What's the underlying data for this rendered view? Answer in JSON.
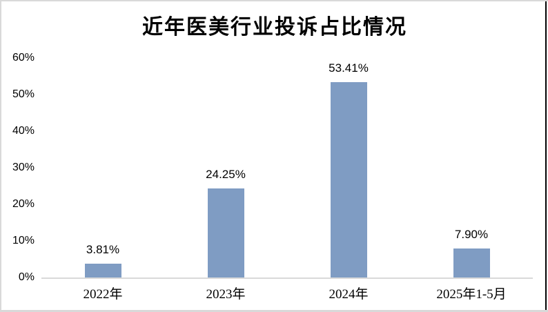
{
  "frame": {
    "background": "#ffffff",
    "border_color": "#d9d9d9",
    "right_edge_color": "#000000"
  },
  "chart_data": {
    "type": "bar",
    "title": "近年医美行业投诉占比情况",
    "categories": [
      "2022年",
      "2023年",
      "2024年",
      "2025年1-5月"
    ],
    "values": [
      3.81,
      24.25,
      53.41,
      7.9
    ],
    "data_labels": [
      "3.81%",
      "24.25%",
      "53.41%",
      "7.90%"
    ],
    "yticks": [
      "0%",
      "10%",
      "20%",
      "30%",
      "40%",
      "50%",
      "60%"
    ],
    "ylim": [
      0,
      60
    ],
    "xlabel": "",
    "ylabel": "",
    "bar_color": "#7f9cc3",
    "axis_line_color": "#d9d9d9",
    "text_color": "#000000",
    "grid": false,
    "legend": false
  }
}
